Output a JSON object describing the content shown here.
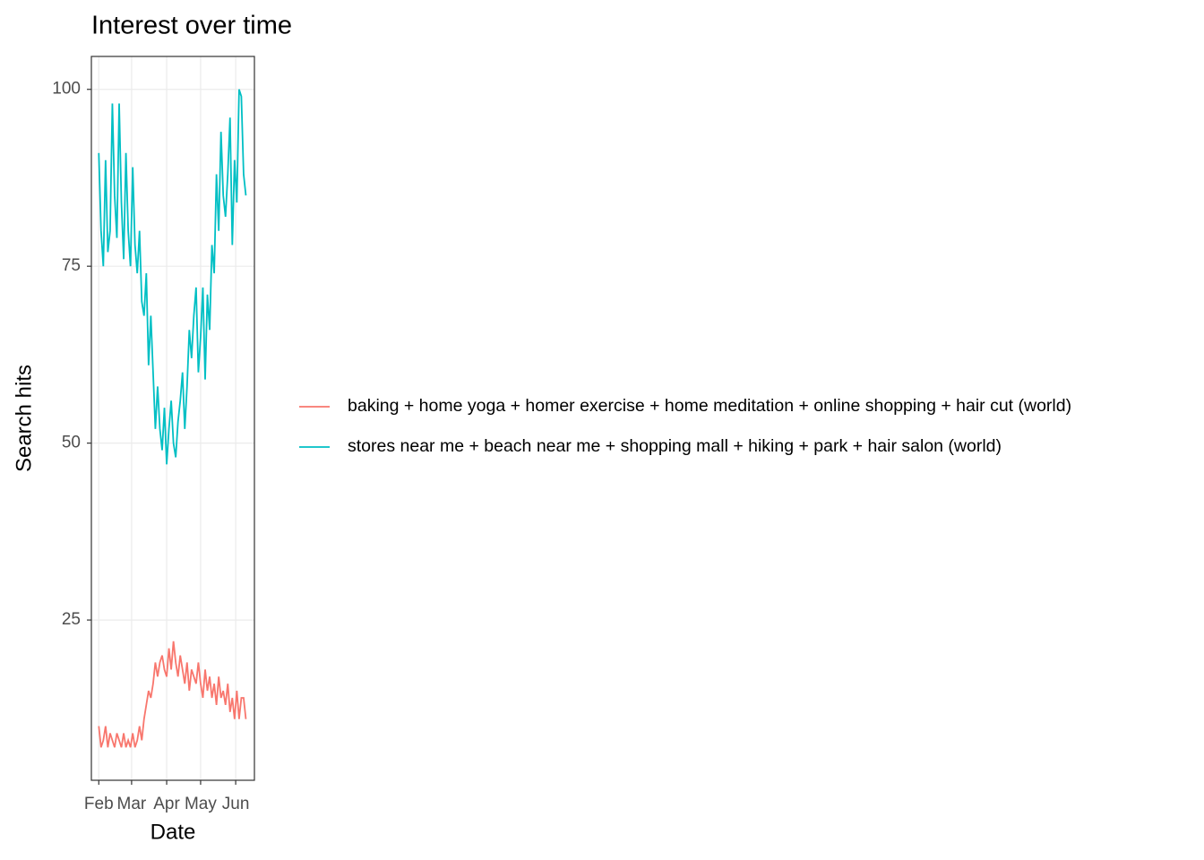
{
  "chart_data": {
    "type": "line",
    "title": "Interest over time",
    "x_label": "Date",
    "y_label": "Search hits",
    "x": [
      0,
      2,
      4,
      6,
      8,
      10,
      12,
      14,
      16,
      18,
      20,
      22,
      24,
      26,
      28,
      30,
      32,
      34,
      36,
      38,
      40,
      42,
      44,
      46,
      48,
      50,
      52,
      54,
      56,
      58,
      60,
      62,
      64,
      66,
      68,
      70,
      72,
      74,
      76,
      78,
      80,
      82,
      84,
      86,
      88,
      90,
      92,
      94,
      96,
      98,
      100,
      102,
      104,
      106,
      108,
      110,
      112,
      114,
      116,
      118,
      120,
      122,
      124,
      126,
      128,
      130
    ],
    "series": [
      {
        "name": "baking + home yoga + homer exercise + home meditation + online shopping + hair cut (world)",
        "color": "#F8766D",
        "values": [
          10,
          7,
          8,
          10,
          7,
          9,
          8,
          7,
          9,
          8,
          7,
          9,
          7,
          8,
          7,
          9,
          7,
          8,
          10,
          8,
          11,
          13,
          15,
          14,
          16,
          19,
          17,
          19,
          20,
          18,
          17,
          21,
          18,
          22,
          19,
          17,
          20,
          18,
          16,
          19,
          15,
          18,
          17,
          16,
          19,
          16,
          14,
          18,
          15,
          17,
          14,
          16,
          13,
          17,
          14,
          15,
          13,
          16,
          12,
          14,
          11,
          15,
          11,
          14,
          14,
          11
        ]
      },
      {
        "name": "stores near me + beach near me + shopping mall + hiking + park + hair salon (world)",
        "color": "#00BFC4",
        "values": [
          91,
          80,
          75,
          90,
          77,
          80,
          98,
          85,
          79,
          98,
          84,
          76,
          91,
          80,
          75,
          89,
          78,
          74,
          80,
          70,
          68,
          74,
          61,
          68,
          60,
          52,
          58,
          52,
          49,
          55,
          47,
          52,
          56,
          50,
          48,
          53,
          56,
          60,
          52,
          58,
          66,
          62,
          68,
          72,
          60,
          65,
          72,
          59,
          71,
          66,
          78,
          74,
          88,
          80,
          94,
          85,
          82,
          88,
          96,
          78,
          90,
          84,
          100,
          99,
          88,
          85
        ]
      }
    ],
    "xlim": [
      -6.55,
      137.55
    ],
    "xticks": [
      {
        "value": 0,
        "label": "Feb"
      },
      {
        "value": 29,
        "label": "Mar"
      },
      {
        "value": 60,
        "label": "Apr"
      },
      {
        "value": 90,
        "label": "May"
      },
      {
        "value": 121,
        "label": "Jun"
      }
    ],
    "ylim": [
      2.35,
      104.65
    ],
    "yticks": [
      25,
      50,
      75,
      100
    ],
    "grid": true,
    "legend": "right"
  }
}
